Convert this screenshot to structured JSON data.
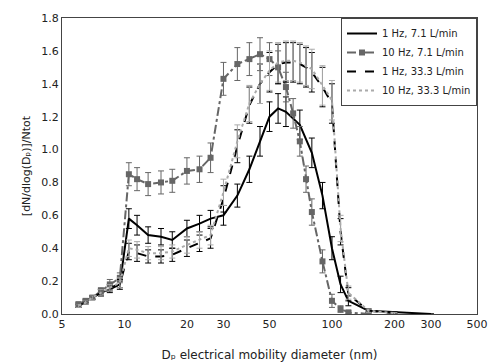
{
  "chart_data": {
    "type": "line",
    "xlabel": "Dₚ electrical mobility diameter (nm)",
    "ylabel": "[dN/dlog(Dₚ)]/Ntot",
    "log": "x",
    "grid": false,
    "legend": "upper right",
    "xlim": [
      5,
      500
    ],
    "ylim": [
      0,
      1.8
    ],
    "xticks": [
      5,
      10,
      20,
      30,
      50,
      100,
      200,
      300,
      500
    ],
    "yticks": [
      {
        "value": 0,
        "label": "0.0"
      },
      0.2,
      0.4,
      0.6,
      0.8,
      {
        "value": 1.0,
        "label": "1.0"
      },
      1.2,
      1.4,
      1.6,
      1.8
    ],
    "series": [
      {
        "name": "1 Hz, 7.1 L/min",
        "color": "#000000",
        "line_style": "solid",
        "marker": "none",
        "x": [
          6.0,
          6.5,
          7.0,
          7.7,
          8.5,
          9.5,
          10.5,
          11.5,
          13.0,
          15.0,
          17.0,
          20.0,
          23.0,
          26.0,
          30.0,
          35.0,
          40.0,
          45.0,
          50.0,
          55.0,
          60.0,
          70.0,
          80.0,
          90.0,
          100.0,
          110.0,
          120.0,
          150.0,
          200.0,
          300.0
        ],
        "values": [
          0.05,
          0.08,
          0.1,
          0.13,
          0.15,
          0.18,
          0.58,
          0.54,
          0.48,
          0.47,
          0.45,
          0.52,
          0.55,
          0.58,
          0.6,
          0.72,
          0.88,
          1.05,
          1.2,
          1.25,
          1.23,
          1.15,
          0.98,
          0.72,
          0.4,
          0.18,
          0.08,
          0.02,
          0.01,
          0.0
        ],
        "yerr": [
          0.01,
          0.01,
          0.01,
          0.02,
          0.02,
          0.02,
          0.06,
          0.06,
          0.05,
          0.05,
          0.05,
          0.05,
          0.05,
          0.05,
          0.06,
          0.07,
          0.08,
          0.09,
          0.09,
          0.09,
          0.09,
          0.09,
          0.09,
          0.08,
          0.07,
          0.05,
          0.03,
          0.01,
          0.005,
          0.0
        ]
      },
      {
        "name": "10 Hz, 7.1 L/min",
        "color": "#666666",
        "line_style": "dashdot",
        "marker": "square",
        "x": [
          6.0,
          6.5,
          7.0,
          7.7,
          8.5,
          9.5,
          10.5,
          11.5,
          13.0,
          15.0,
          17.0,
          20.0,
          23.0,
          26.0,
          30.0,
          35.0,
          40.0,
          45.0,
          50.0,
          55.0,
          60.0,
          65.0,
          70.0,
          75.0,
          80.0,
          90.0,
          100.0,
          110.0,
          120.0,
          150.0
        ],
        "values": [
          0.06,
          0.08,
          0.1,
          0.14,
          0.18,
          0.22,
          0.85,
          0.82,
          0.79,
          0.8,
          0.81,
          0.87,
          0.88,
          0.95,
          1.43,
          1.52,
          1.55,
          1.58,
          1.55,
          1.5,
          1.38,
          1.22,
          1.05,
          0.82,
          0.62,
          0.32,
          0.08,
          0.03,
          0.01,
          0.0
        ],
        "yerr": [
          0.01,
          0.01,
          0.01,
          0.02,
          0.03,
          0.03,
          0.07,
          0.07,
          0.07,
          0.07,
          0.07,
          0.08,
          0.08,
          0.09,
          0.1,
          0.1,
          0.1,
          0.1,
          0.1,
          0.1,
          0.09,
          0.09,
          0.09,
          0.08,
          0.08,
          0.07,
          0.04,
          0.02,
          0.01,
          0.0
        ]
      },
      {
        "name": "1 Hz, 33.3 L/min",
        "color": "#000000",
        "line_style": "dashed",
        "marker": "none",
        "x": [
          6.0,
          6.5,
          7.0,
          7.7,
          8.5,
          9.5,
          10.5,
          11.5,
          13.0,
          15.0,
          17.0,
          20.0,
          23.0,
          26.0,
          30.0,
          35.0,
          40.0,
          45.0,
          50.0,
          55.0,
          60.0,
          65.0,
          70.0,
          75.0,
          80.0,
          90.0,
          100.0,
          110.0,
          120.0,
          150.0,
          200.0
        ],
        "values": [
          0.05,
          0.07,
          0.1,
          0.13,
          0.16,
          0.18,
          0.38,
          0.37,
          0.35,
          0.35,
          0.36,
          0.4,
          0.43,
          0.46,
          0.7,
          1.02,
          1.27,
          1.4,
          1.47,
          1.52,
          1.53,
          1.53,
          1.52,
          1.5,
          1.47,
          1.38,
          1.28,
          0.5,
          0.12,
          0.02,
          0.005
        ],
        "yerr": [
          0.01,
          0.01,
          0.01,
          0.02,
          0.02,
          0.03,
          0.05,
          0.05,
          0.04,
          0.04,
          0.04,
          0.05,
          0.05,
          0.06,
          0.08,
          0.1,
          0.11,
          0.12,
          0.12,
          0.12,
          0.12,
          0.12,
          0.12,
          0.12,
          0.12,
          0.12,
          0.12,
          0.08,
          0.04,
          0.01,
          0.005
        ]
      },
      {
        "name": "10 Hz, 33.3 L/min",
        "color": "#aaaaaa",
        "line_style": "dotted",
        "marker": "none",
        "x": [
          6.0,
          6.5,
          7.0,
          7.7,
          8.5,
          9.5,
          10.5,
          11.5,
          13.0,
          15.0,
          17.0,
          20.0,
          23.0,
          26.0,
          30.0,
          35.0,
          40.0,
          45.0,
          50.0,
          55.0,
          60.0,
          65.0,
          70.0,
          75.0,
          80.0,
          90.0,
          100.0,
          110.0,
          120.0,
          150.0,
          200.0
        ],
        "values": [
          0.05,
          0.07,
          0.1,
          0.13,
          0.16,
          0.19,
          0.4,
          0.39,
          0.37,
          0.37,
          0.38,
          0.42,
          0.45,
          0.48,
          0.74,
          1.05,
          1.28,
          1.4,
          1.48,
          1.53,
          1.54,
          1.54,
          1.53,
          1.51,
          1.49,
          1.39,
          1.3,
          0.52,
          0.13,
          0.02,
          0.005
        ],
        "yerr": [
          0.01,
          0.01,
          0.01,
          0.02,
          0.02,
          0.03,
          0.05,
          0.05,
          0.04,
          0.04,
          0.04,
          0.05,
          0.05,
          0.06,
          0.08,
          0.1,
          0.11,
          0.12,
          0.12,
          0.12,
          0.12,
          0.12,
          0.12,
          0.12,
          0.12,
          0.12,
          0.12,
          0.08,
          0.04,
          0.01,
          0.005
        ]
      }
    ]
  }
}
